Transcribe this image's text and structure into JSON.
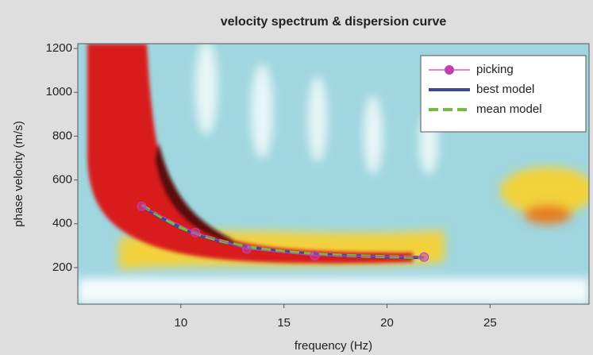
{
  "chart_data": {
    "type": "line",
    "title": "velocity spectrum & dispersion curve",
    "xlabel": "frequency (Hz)",
    "ylabel": "phase velocity (m/s)",
    "xlim": [
      5,
      29.8
    ],
    "ylim": [
      33,
      1222
    ],
    "xticks": [
      10,
      15,
      20,
      25
    ],
    "yticks": [
      200,
      400,
      600,
      800,
      1000,
      1200
    ],
    "legend": "upper right",
    "series": [
      {
        "name": "picking",
        "color": "#c040b0",
        "marker": "circle",
        "x": [
          8.1,
          10.7,
          13.2,
          16.5,
          21.8
        ],
        "values": [
          480,
          360,
          285,
          255,
          248
        ]
      },
      {
        "name": "best model",
        "color": "#3a4a9a",
        "x": [
          8.1,
          9,
          10,
          11,
          12,
          13,
          14,
          15,
          16,
          17,
          18,
          19,
          20,
          21,
          21.8
        ],
        "values": [
          480,
          430,
          380,
          345,
          318,
          298,
          283,
          272,
          264,
          258,
          254,
          251,
          249,
          247,
          246
        ]
      },
      {
        "name": "mean model",
        "color": "#7ab840",
        "dash": "dashed",
        "x": [
          8.1,
          9,
          10,
          11,
          12,
          13,
          14,
          15,
          16,
          17,
          18,
          19,
          20,
          21,
          21.8
        ],
        "values": [
          485,
          433,
          382,
          347,
          320,
          299,
          284,
          273,
          265,
          259,
          255,
          252,
          250,
          248,
          247
        ]
      }
    ]
  }
}
